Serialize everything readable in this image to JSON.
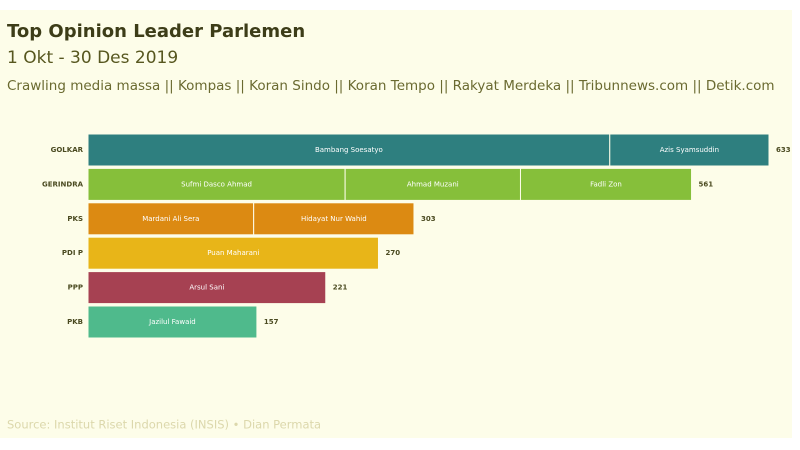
{
  "chart_data": {
    "type": "stacked-bar",
    "orientation": "horizontal",
    "title": "Top Opinion Leader Parlemen",
    "subtitle": "1 Okt - 30 Des 2019",
    "description": "Crawling media massa || Kompas || Koran Sindo || Koran Tempo || Rakyat Merdeka || Tribunnews.com || Detik.com",
    "source": "Source: Institut Riset Indonesia (INSIS) • Dian Permata",
    "categories": [
      "GOLKAR",
      "GERINDRA",
      "PKS",
      "PDI P",
      "PPP",
      "PKB"
    ],
    "colors": [
      "#2e7f7f",
      "#86bf3a",
      "#dc8a12",
      "#e8b518",
      "#a64152",
      "#4fba8c"
    ],
    "segments": [
      [
        {
          "name": "Bambang Soesatyo",
          "value": 485
        },
        {
          "name": "Azis Syamsuddin",
          "value": 148
        }
      ],
      [
        {
          "name": "Sufmi Dasco Ahmad",
          "value": 239
        },
        {
          "name": "Ahmad Muzani",
          "value": 163
        },
        {
          "name": "Fadli Zon",
          "value": 159
        }
      ],
      [
        {
          "name": "Mardani Ali Sera",
          "value": 154
        },
        {
          "name": "Hidayat Nur Wahid",
          "value": 149
        }
      ],
      [
        {
          "name": "Puan Maharani",
          "value": 270
        }
      ],
      [
        {
          "name": "Arsul Sani",
          "value": 221
        }
      ],
      [
        {
          "name": "Jazilul Fawaid",
          "value": 157
        }
      ]
    ],
    "totals": [
      633,
      561,
      303,
      270,
      221,
      157
    ],
    "xlim": [
      0,
      633
    ]
  }
}
